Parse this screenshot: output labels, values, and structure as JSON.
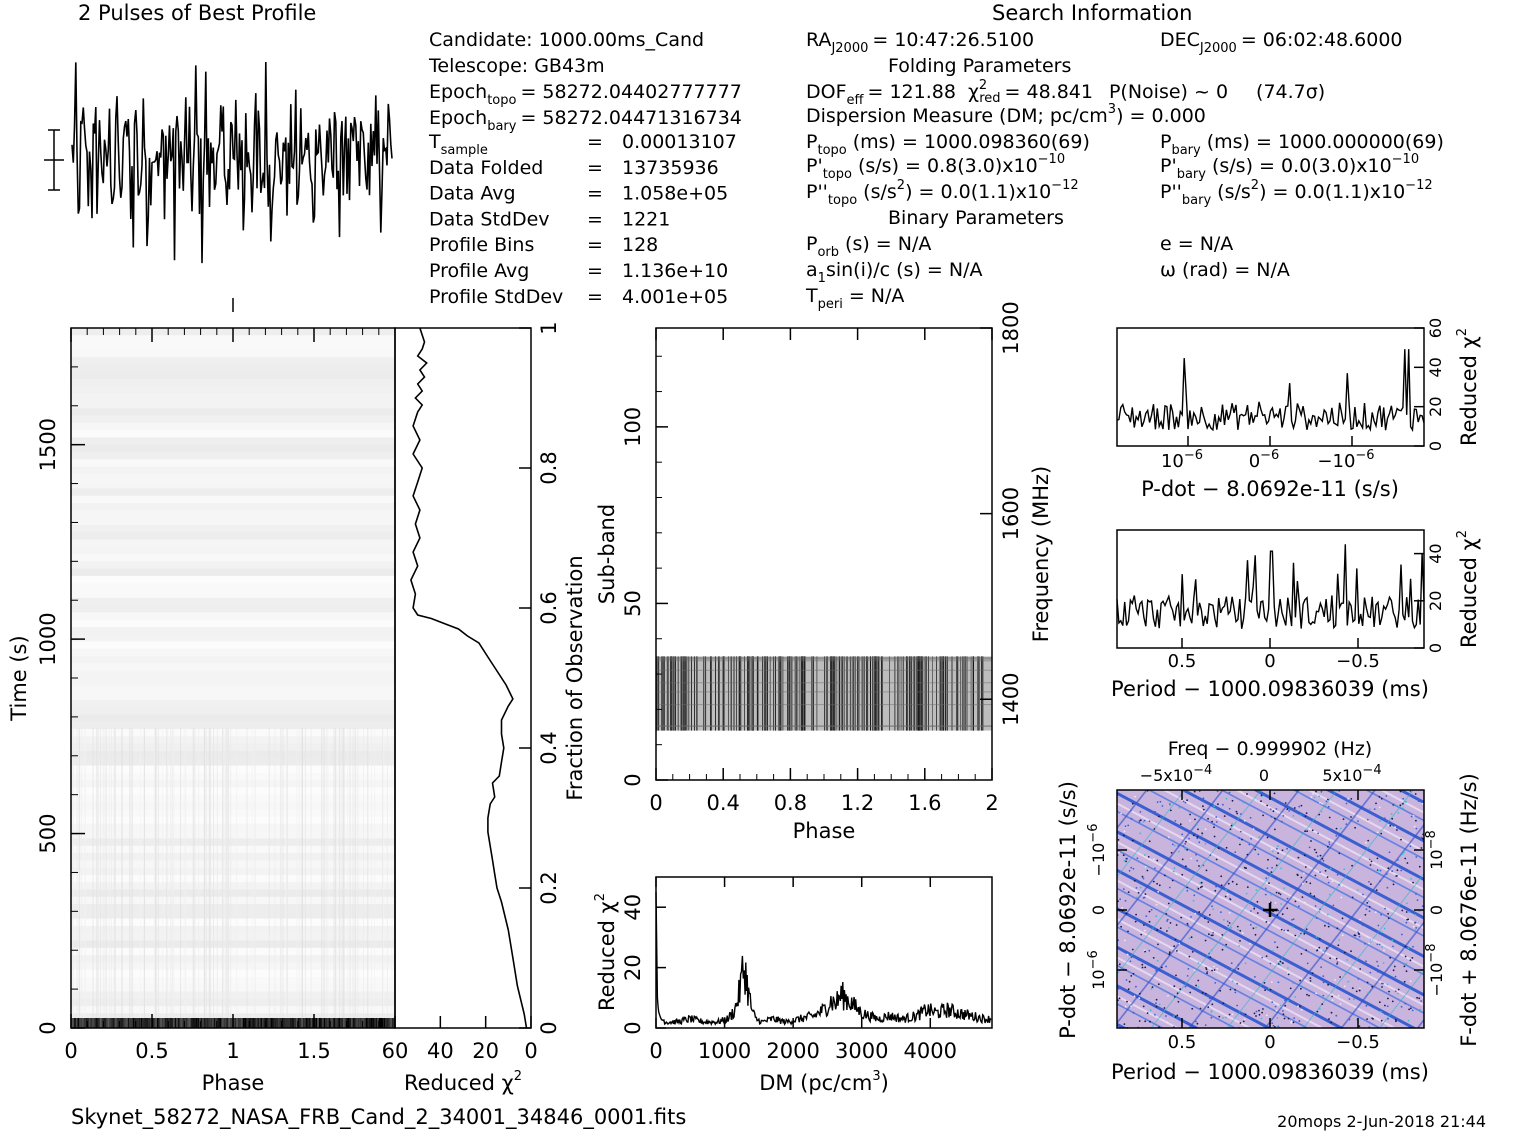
{
  "title": "2 Pulses of Best Profile",
  "search_title": "Search Information",
  "footer": {
    "filename": "Skynet_58272_NASA_FRB_Cand_2_34001_34846_0001.fits",
    "stamp": "20mops  2-Jun-2018 21:44"
  },
  "params": {
    "candidate": "Candidate:  1000.00ms_Cand",
    "telescope": "Telescope:  GB43m",
    "epoch_topo_label": "Epoch",
    "epoch_topo_sub": "topo",
    "epoch_topo_val": "= 58272.04402777777",
    "epoch_bary_label": "Epoch",
    "epoch_bary_sub": "bary",
    "epoch_bary_val": "= 58272.04471316734",
    "tsample_label": "T",
    "tsample_sub": "sample",
    "rows": [
      {
        "label": "",
        "eq": "=",
        "value": "0.00013107"
      },
      {
        "label": "Data Folded",
        "eq": "=",
        "value": "13735936"
      },
      {
        "label": "Data Avg",
        "eq": "=",
        "value": "1.058e+05"
      },
      {
        "label": "Data StdDev",
        "eq": "=",
        "value": "1221"
      },
      {
        "label": "Profile Bins",
        "eq": "=",
        "value": "128"
      },
      {
        "label": "Profile Avg",
        "eq": "=",
        "value": "1.136e+10"
      },
      {
        "label": "Profile StdDev",
        "eq": "=",
        "value": "4.001e+05"
      }
    ]
  },
  "search": {
    "ra": "RA",
    "ra_sub": "J2000",
    "ra_val": "= 10:47:26.5100",
    "dec": "DEC",
    "dec_sub": "J2000",
    "dec_val": "= 06:02:48.6000",
    "folding_title": "Folding Parameters",
    "dof": "DOF",
    "dof_sub": "eff",
    "dof_val": "= 121.88",
    "chi": "χ",
    "chi_sup": "2",
    "chi_sub": "red",
    "chi_val": "= 48.841",
    "pnoise": "P(Noise) ~ 0",
    "sigma": "(74.7σ)",
    "dm_line_a": "Dispersion Measure (DM; pc/cm",
    "dm_line_sup": "3",
    "dm_line_b": ") = 0.000",
    "ptopo": "P",
    "ptopo_sub": "topo",
    "ptopo_val": "(ms) =  1000.098360(69)",
    "pbary": "P",
    "pbary_sub": "bary",
    "pbary_val": "(ms) =  1000.000000(69)",
    "pdtopo": "P'",
    "pdtopo_sub": "topo",
    "pdtopo_val": "(s/s) =  0.8(3.0)x10",
    "pdtopo_exp": "−10",
    "pdbary": "P'",
    "pdbary_sub": "bary",
    "pdbary_val": "(s/s) = 0.0(3.0)x10",
    "pdbary_exp": "−10",
    "pddtopo": "P''",
    "pddtopo_sub": "topo",
    "pddtopo_val": "(s/s",
    "pddtopo_sup": "2",
    "pddtopo_val2": ") = 0.0(1.1)x10",
    "pddtopo_exp": "−12",
    "pddbary": "P''",
    "pddbary_sub": "bary",
    "pddbary_val": "(s/s",
    "pddbary_sup": "2",
    "pddbary_val2": ") = 0.0(1.1)x10",
    "pddbary_exp": "−12",
    "binary_title": "Binary Parameters",
    "porb": "P",
    "porb_sub": "orb",
    "porb_val": "(s) = N/A",
    "ecc": "e = N/A",
    "asini_a": "a",
    "asini_sub": "1",
    "asini_b": "sin(i)/c (s) = N/A",
    "omega": "ω (rad) = N/A",
    "tperi": "T",
    "tperi_sub": "peri",
    "tperi_val": "= N/A"
  },
  "chart_data": [
    {
      "type": "line",
      "name": "profile",
      "title": "2 Pulses of Best Profile",
      "note": "noisy profile, two pulse periods shown"
    },
    {
      "type": "heatmap",
      "name": "time-phase",
      "xlabel": "Phase",
      "ylabel": "Time (s)",
      "xlim": [
        0,
        2
      ],
      "ylim": [
        0,
        1800
      ],
      "x_ticks": [
        "0",
        "0.5",
        "1",
        "1.5"
      ],
      "y_ticks": [
        "0",
        "500",
        "1000",
        "1500"
      ]
    },
    {
      "type": "line",
      "name": "reduced-chi2-vs-time",
      "xlabel": "Reduced χ",
      "xlabel_sup": "2",
      "ylabel": "Fraction of Observation",
      "xlim": [
        60,
        0
      ],
      "ylim": [
        0,
        1
      ],
      "x_ticks": [
        "60",
        "40",
        "20",
        "0"
      ],
      "y_ticks": [
        "0",
        "0.2",
        "0.4",
        "0.6",
        "0.8",
        "1"
      ],
      "x": [
        2,
        3,
        6,
        8,
        10,
        13,
        15,
        16,
        17,
        18,
        19,
        19,
        18,
        16,
        17,
        14,
        13,
        12,
        13,
        13,
        10,
        8,
        11,
        15,
        19,
        23,
        28,
        32,
        36,
        40,
        44,
        50,
        52,
        51,
        53,
        50,
        52,
        49,
        51,
        49,
        52,
        50,
        48,
        52,
        49,
        52,
        50,
        48,
        51,
        48,
        50,
        47,
        49,
        46,
        50,
        48,
        47,
        49
      ],
      "y": [
        0.0,
        0.02,
        0.06,
        0.1,
        0.14,
        0.18,
        0.2,
        0.22,
        0.24,
        0.26,
        0.28,
        0.3,
        0.32,
        0.33,
        0.35,
        0.36,
        0.38,
        0.4,
        0.42,
        0.44,
        0.46,
        0.47,
        0.49,
        0.51,
        0.53,
        0.55,
        0.56,
        0.57,
        0.575,
        0.58,
        0.585,
        0.59,
        0.6,
        0.62,
        0.64,
        0.66,
        0.68,
        0.7,
        0.72,
        0.74,
        0.76,
        0.78,
        0.8,
        0.82,
        0.84,
        0.86,
        0.88,
        0.89,
        0.9,
        0.91,
        0.92,
        0.93,
        0.94,
        0.95,
        0.96,
        0.97,
        0.98,
        1.0
      ]
    },
    {
      "type": "heatmap",
      "name": "subband-phase",
      "xlabel": "Phase",
      "ylabel": "Sub-band",
      "ylabel2": "Frequency (MHz)",
      "xlim": [
        0,
        2
      ],
      "ylim": [
        0,
        128
      ],
      "x_ticks": [
        "0",
        "0.4",
        "0.8",
        "1.2",
        "1.6",
        "2"
      ],
      "y_ticks": [
        "0",
        "50",
        "100"
      ],
      "y2_ticks": [
        "1400",
        "1600",
        "1800"
      ],
      "band_subbands": [
        14,
        35
      ]
    },
    {
      "type": "line",
      "name": "chi2-vs-dm",
      "xlabel": "DM (pc/cm",
      "xlabel_sup": "3",
      "xlabel_end": ")",
      "ylabel": "Reduced χ",
      "ylabel_sup": "2",
      "xlim": [
        0,
        4900
      ],
      "ylim": [
        0,
        50
      ],
      "x_ticks": [
        "0",
        "1000",
        "2000",
        "3000",
        "4000"
      ],
      "y_ticks": [
        "0",
        "20",
        "40"
      ],
      "x": [
        0,
        20,
        40,
        80,
        150,
        300,
        500,
        700,
        900,
        1050,
        1150,
        1220,
        1260,
        1300,
        1330,
        1360,
        1400,
        1450,
        1550,
        1700,
        1900,
        2100,
        2300,
        2450,
        2550,
        2620,
        2700,
        2760,
        2820,
        2900,
        3000,
        3100,
        3250,
        3400,
        3600,
        3800,
        3950,
        4100,
        4250,
        4400,
        4600,
        4800,
        4900
      ],
      "y": [
        45,
        10,
        4,
        3,
        2,
        2,
        3,
        2,
        2,
        3,
        6,
        12,
        18,
        20,
        14,
        10,
        6,
        3,
        2,
        3,
        2,
        3,
        4,
        6,
        9,
        8,
        11,
        10,
        9,
        7,
        5,
        4,
        3,
        4,
        3,
        4,
        6,
        5,
        6,
        5,
        4,
        3,
        3
      ]
    },
    {
      "type": "line",
      "name": "chi2-vs-pdot",
      "xlabel": "P-dot − 8.0692e-11 (s/s)",
      "ylabel": "Reduced χ",
      "ylabel_sup": "2",
      "ylim": [
        0,
        60
      ],
      "x_ticks": [
        "10",
        "0",
        "−10"
      ],
      "x_tick_exp": "−6",
      "y_ticks": [
        "0",
        "20",
        "40",
        "60"
      ]
    },
    {
      "type": "line",
      "name": "chi2-vs-period",
      "xlabel": "Period − 1000.09836039 (ms)",
      "ylabel": "Reduced χ",
      "ylabel_sup": "2",
      "x_ticks": [
        "0.5",
        "0",
        "−0.5"
      ],
      "y_ticks": [
        "0",
        "20",
        "40"
      ]
    },
    {
      "type": "heatmap",
      "name": "p-pdot-plane",
      "title": "Freq − 0.999902 (Hz)",
      "xlabel": "Period − 1000.09836039 (ms)",
      "ylabel": "P-dot − 8.0692e-11 (s/s)",
      "ylabel2": "F-dot + 8.0676e-11 (Hz/s)",
      "top_ticks": [
        "−5x10",
        "0",
        "5x10"
      ],
      "top_tick_exp": "−4",
      "x_ticks": [
        "0.5",
        "0",
        "−0.5"
      ],
      "y_ticks": [
        "−10",
        "0",
        "10"
      ],
      "y_tick_exp": "−6",
      "y2_ticks": [
        "10",
        "0",
        "−10"
      ],
      "y2_tick_exp": "−8"
    }
  ]
}
